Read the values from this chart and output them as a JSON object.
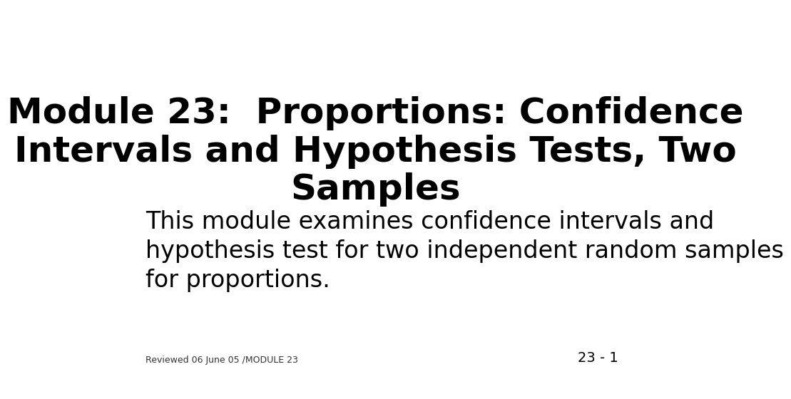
{
  "title_line1": "Module 23:  Proportions: Confidence",
  "title_line2": "Intervals and Hypothesis Tests, Two",
  "title_line3": "Samples",
  "body_text": "This module examines confidence intervals and\nhypothesis test for two independent random samples\nfor proportions.",
  "footer_text": "Reviewed 06 June 05 /MODULE 23",
  "slide_number": "23 - 1",
  "background_color": "#FFFFFF",
  "title_fontsize": 36,
  "body_fontsize": 24,
  "footer_fontsize": 9,
  "slide_number_fontsize": 14,
  "title_color": "#000000",
  "body_color": "#000000",
  "footer_color": "#333333",
  "slide_number_color": "#000000"
}
